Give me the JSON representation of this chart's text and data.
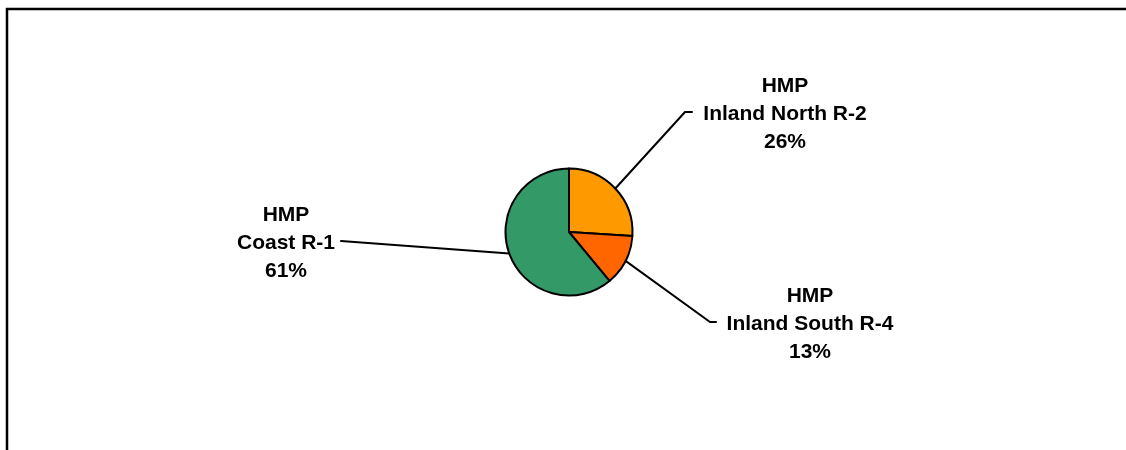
{
  "chart_data": {
    "type": "pie",
    "categories": [
      "HMP\nInland North R-2",
      "HMP\nInland South R-4",
      "HMP\nCoast R-1"
    ],
    "values": [
      26,
      13,
      61
    ],
    "colors": [
      "#ff9900",
      "#ff6600",
      "#339966"
    ],
    "value_labels": [
      "26%",
      "13%",
      "61%"
    ]
  }
}
